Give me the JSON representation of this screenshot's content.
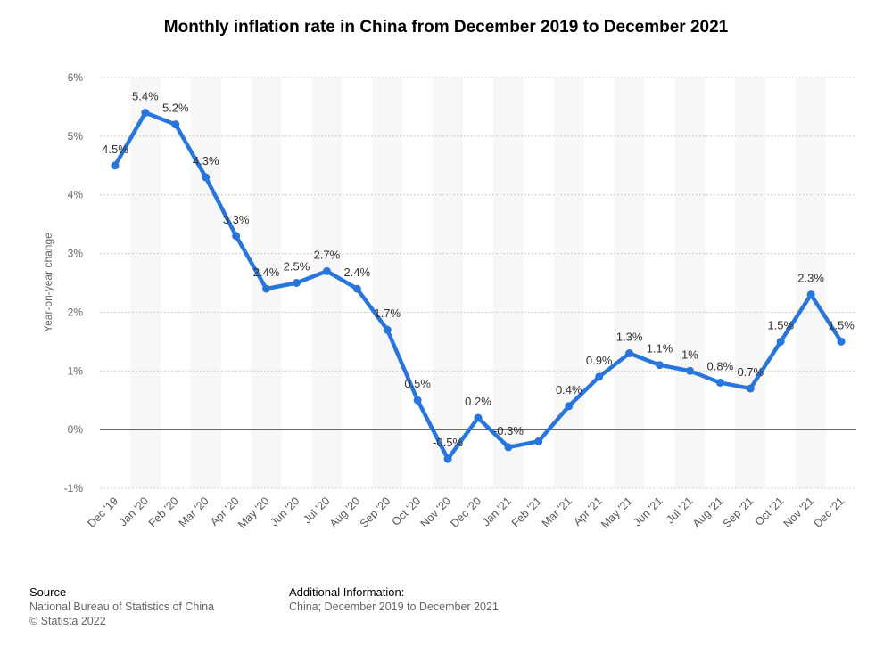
{
  "chart_data": {
    "type": "line",
    "title": "Monthly inflation rate in China from December 2019 to December 2021",
    "xlabel": "",
    "ylabel": "Year-on-year change",
    "categories": [
      "Dec '19",
      "Jan '20",
      "Feb '20",
      "Mar '20",
      "Apr '20",
      "May '20",
      "Jun '20",
      "Jul '20",
      "Aug '20",
      "Sep '20",
      "Oct '20",
      "Nov '20",
      "Dec '20",
      "Jan '21",
      "Feb '21",
      "Mar '21",
      "Apr '21",
      "May '21",
      "Jun '21",
      "Jul '21",
      "Aug '21",
      "Sep '21",
      "Oct '21",
      "Nov '21",
      "Dec '21"
    ],
    "series": [
      {
        "values": [
          4.5,
          5.4,
          5.2,
          4.3,
          3.3,
          2.4,
          2.5,
          2.7,
          2.4,
          1.7,
          0.5,
          -0.5,
          0.2,
          -0.3,
          -0.2,
          0.4,
          0.9,
          1.3,
          1.1,
          1.0,
          0.8,
          0.7,
          1.5,
          2.3,
          1.5
        ],
        "labels": [
          "4.5%",
          "5.4%",
          "5.2%",
          "4.3%",
          "3.3%",
          "2.4%",
          "2.5%",
          "2.7%",
          "2.4%",
          "1.7%",
          "0.5%",
          "-0.5%",
          "0.2%",
          "-0.3%",
          "",
          "0.4%",
          "0.9%",
          "1.3%",
          "1.1%",
          "1%",
          "0.8%",
          "0.7%",
          "1.5%",
          "2.3%",
          "1.5%"
        ],
        "color": "#2876dd"
      }
    ],
    "ylim": [
      -1,
      6
    ],
    "yticks": [
      -1,
      0,
      1,
      2,
      3,
      4,
      5,
      6
    ],
    "ytick_labels": [
      "-1%",
      "0%",
      "1%",
      "2%",
      "3%",
      "4%",
      "5%",
      "6%"
    ],
    "grid": true,
    "legend": "none"
  },
  "footer": {
    "source_heading": "Source",
    "source_line1": "National Bureau of Statistics of China",
    "source_line2": "© Statista 2022",
    "info_heading": "Additional Information:",
    "info_line1": "China; December 2019 to December 2021"
  }
}
